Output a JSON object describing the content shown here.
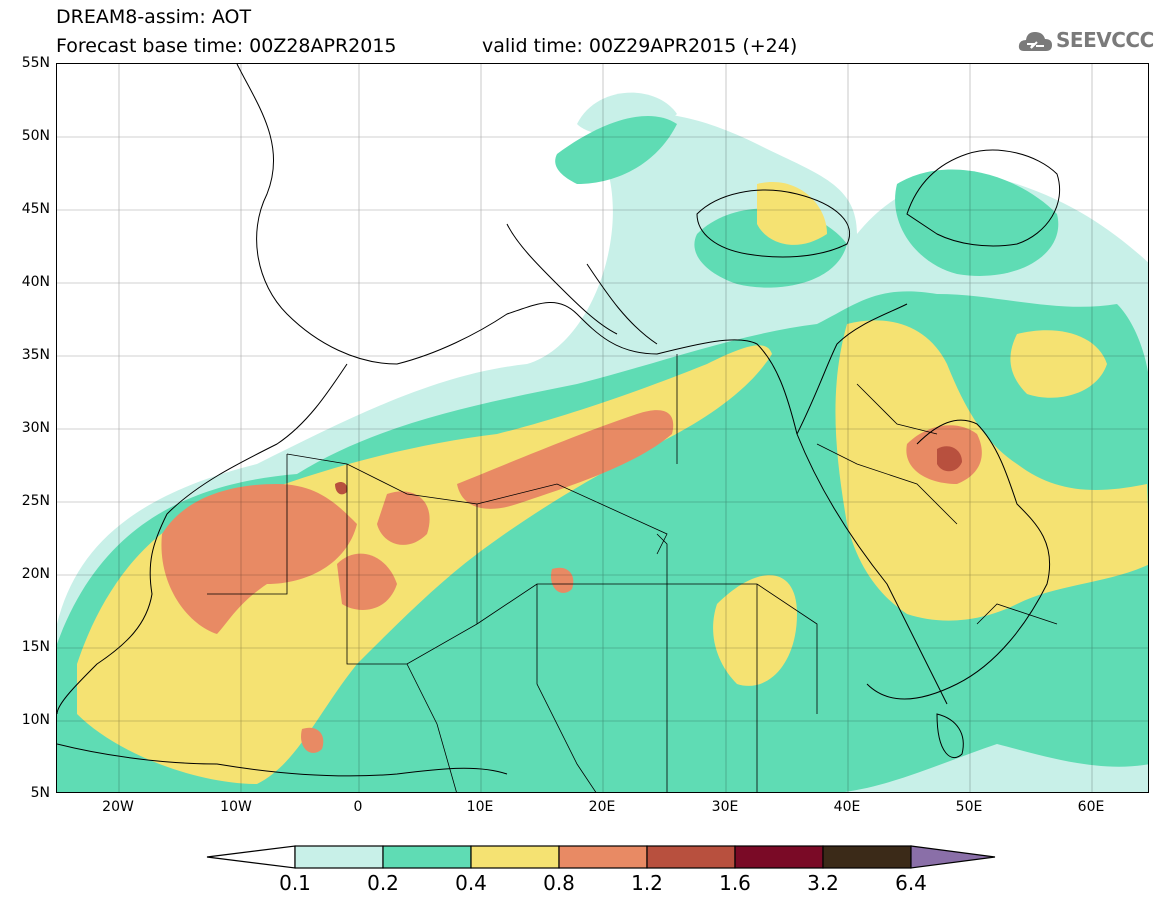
{
  "title": {
    "line1": "DREAM8-assim: AOT",
    "line2": "Forecast base time: 00Z28APR2015",
    "valid": "valid time: 00Z29APR2015 (+24)"
  },
  "logo": {
    "text": "SEEVCCC",
    "icon": "cloud-logo-icon"
  },
  "map": {
    "lat_labels": [
      "55N",
      "50N",
      "45N",
      "40N",
      "35N",
      "30N",
      "25N",
      "20N",
      "15N",
      "10N",
      "5N"
    ],
    "lon_labels": [
      "20W",
      "10W",
      "0",
      "10E",
      "20E",
      "30E",
      "40E",
      "50E",
      "60E"
    ]
  },
  "colorbar": {
    "labels": [
      "0.1",
      "0.2",
      "0.4",
      "0.8",
      "1.2",
      "1.6",
      "3.2",
      "6.4"
    ],
    "colors": [
      "#ffffff",
      "#c8f0e8",
      "#5fdcb4",
      "#f5e272",
      "#e88a64",
      "#b8503e",
      "#7a0a26",
      "#3b2a18",
      "#8a6fa8"
    ]
  },
  "palette": {
    "c01": "#c8f0e8",
    "c02": "#5fdcb4",
    "c04": "#f5e272",
    "c08": "#e88a64",
    "c12": "#b8503e",
    "c16": "#7a0a26"
  }
}
